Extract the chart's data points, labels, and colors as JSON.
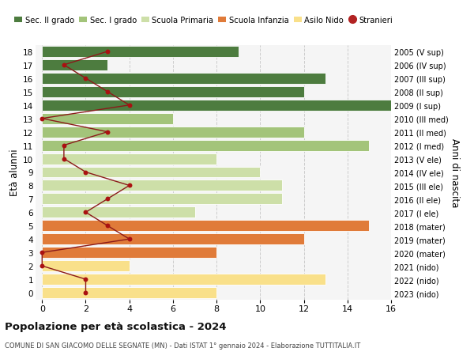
{
  "ages": [
    0,
    1,
    2,
    3,
    4,
    5,
    6,
    7,
    8,
    9,
    10,
    11,
    12,
    13,
    14,
    15,
    16,
    17,
    18
  ],
  "right_labels": [
    "2023 (nido)",
    "2022 (nido)",
    "2021 (nido)",
    "2020 (mater)",
    "2019 (mater)",
    "2018 (mater)",
    "2017 (I ele)",
    "2016 (II ele)",
    "2015 (III ele)",
    "2014 (IV ele)",
    "2013 (V ele)",
    "2012 (I med)",
    "2011 (II med)",
    "2010 (III med)",
    "2009 (I sup)",
    "2008 (II sup)",
    "2007 (III sup)",
    "2006 (IV sup)",
    "2005 (V sup)"
  ],
  "bar_values": [
    8,
    13,
    4,
    8,
    12,
    15,
    7,
    11,
    11,
    10,
    8,
    15,
    12,
    6,
    16,
    12,
    13,
    3,
    9
  ],
  "bar_colors": [
    "#f9e08a",
    "#f9e08a",
    "#f9e08a",
    "#e07b39",
    "#e07b39",
    "#e07b39",
    "#cddfa8",
    "#cddfa8",
    "#cddfa8",
    "#cddfa8",
    "#cddfa8",
    "#a3c47a",
    "#a3c47a",
    "#a3c47a",
    "#4d7c3f",
    "#4d7c3f",
    "#4d7c3f",
    "#4d7c3f",
    "#4d7c3f"
  ],
  "stranieri_values": [
    2,
    2,
    0,
    0,
    4,
    3,
    2,
    3,
    4,
    2,
    1,
    1,
    3,
    0,
    4,
    3,
    2,
    1,
    3
  ],
  "legend_labels": [
    "Sec. II grado",
    "Sec. I grado",
    "Scuola Primaria",
    "Scuola Infanzia",
    "Asilo Nido",
    "Stranieri"
  ],
  "legend_colors": [
    "#4d7c3f",
    "#a3c47a",
    "#cddfa8",
    "#e07b39",
    "#f9e08a",
    "#b22222"
  ],
  "xlabel": "Età alunni",
  "ylabel_right": "Anni di nascita",
  "title": "Popolazione per età scolastica - 2024",
  "subtitle": "COMUNE DI SAN GIACOMO DELLE SEGNATE (MN) - Dati ISTAT 1° gennaio 2024 - Elaborazione TUTTITALIA.IT",
  "xlim_min": -0.3,
  "xlim_max": 16,
  "ylim_min": -0.5,
  "ylim_max": 18.5,
  "xticks": [
    0,
    2,
    4,
    6,
    8,
    10,
    12,
    14,
    16
  ],
  "bg_color": "#ffffff",
  "plot_bg": "#f5f5f5",
  "grid_color": "#cccccc",
  "line_color": "#8b1a1a",
  "dot_color": "#aa1111",
  "bar_height": 0.82
}
